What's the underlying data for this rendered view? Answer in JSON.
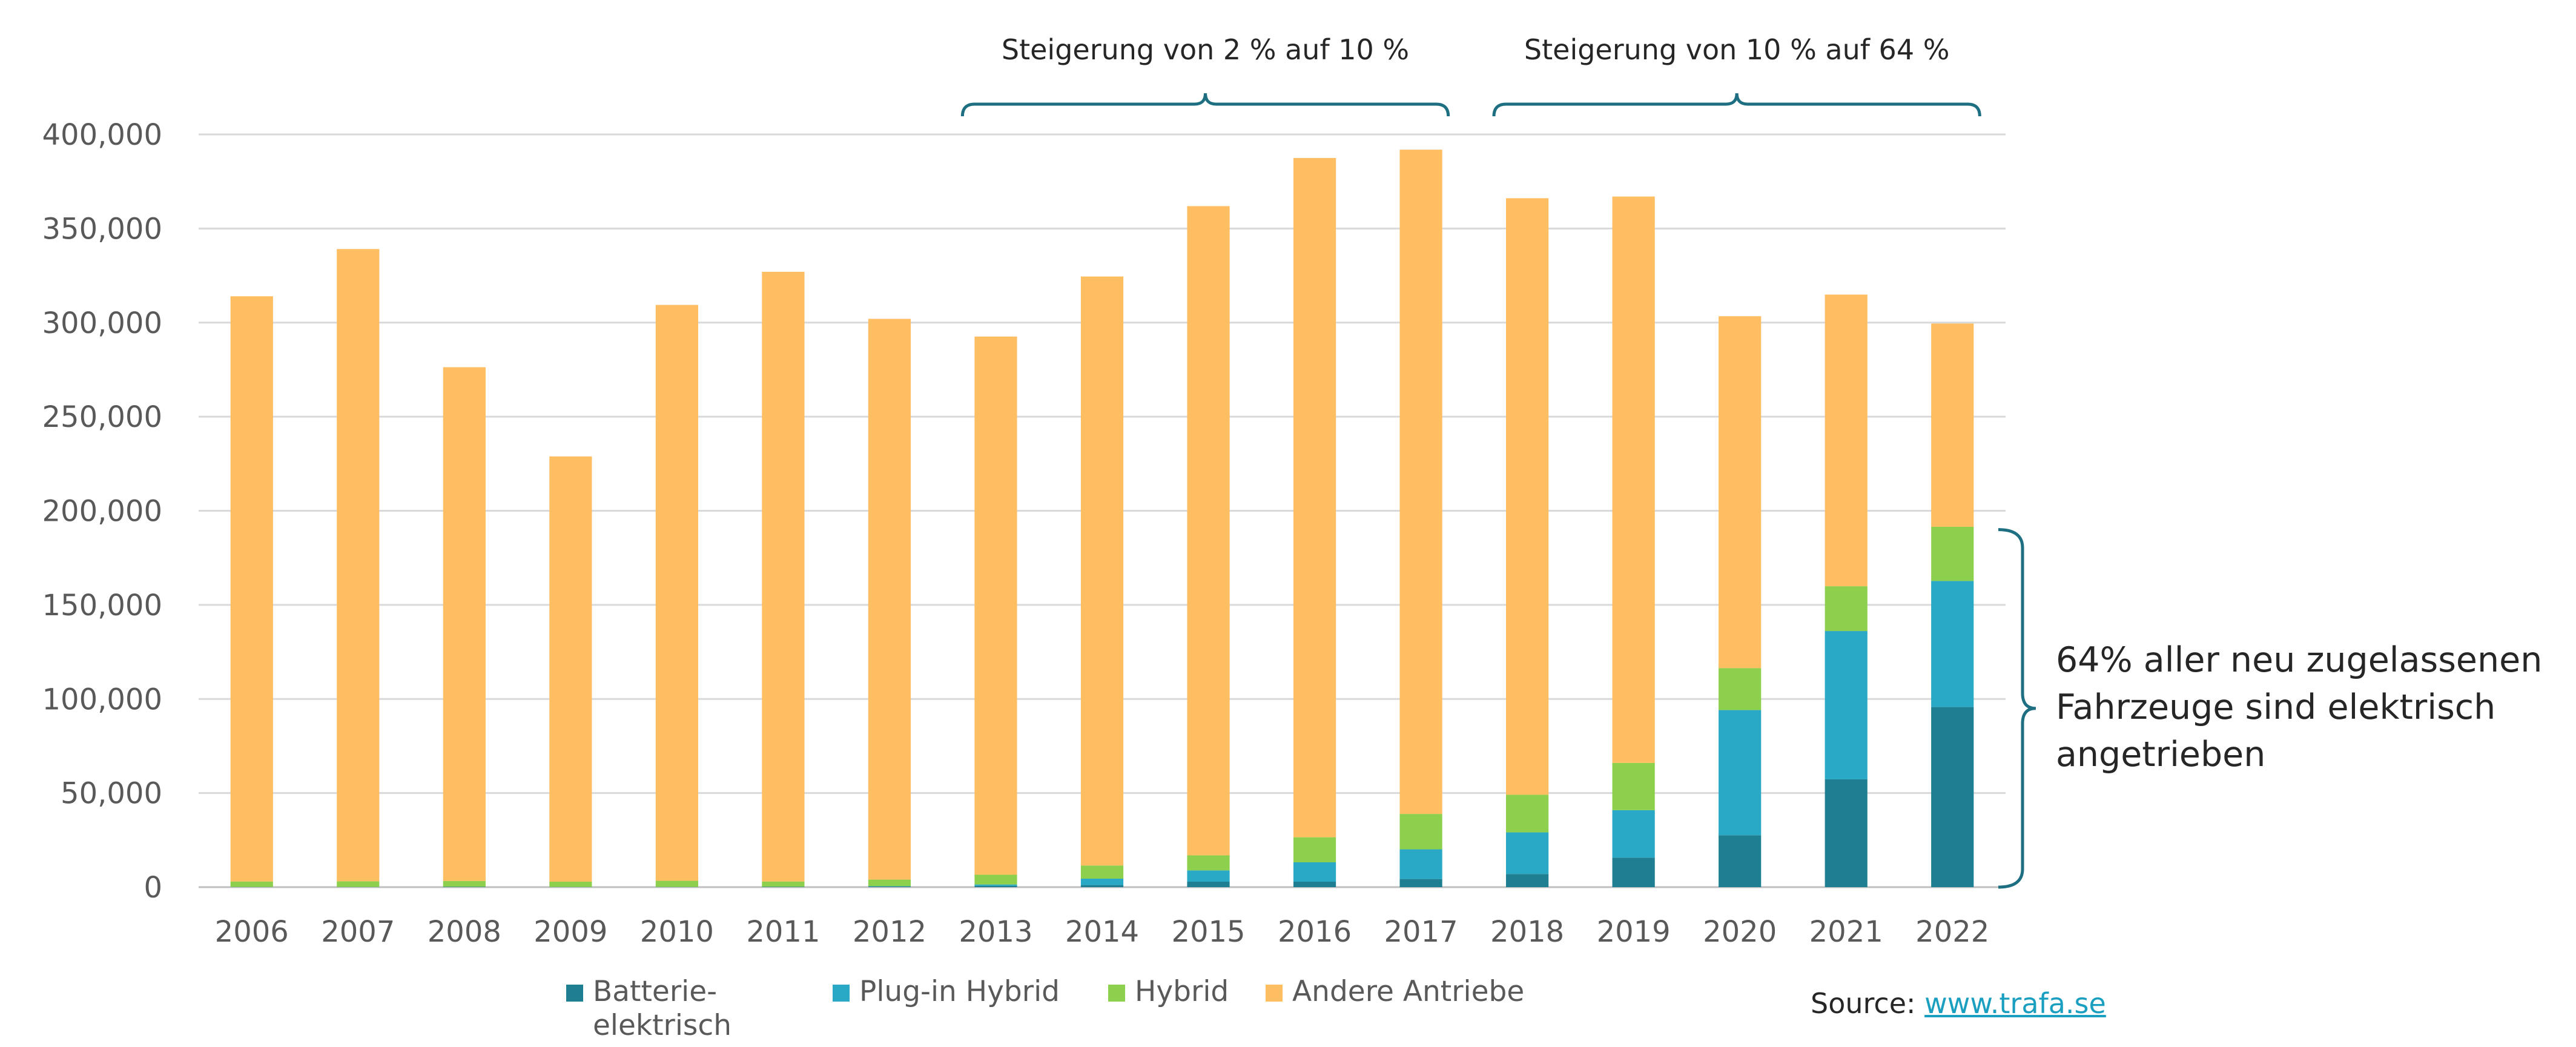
{
  "chart_data": {
    "type": "bar",
    "stacked": true,
    "categories": [
      "2006",
      "2007",
      "2008",
      "2009",
      "2010",
      "2011",
      "2012",
      "2013",
      "2014",
      "2015",
      "2016",
      "2017",
      "2018",
      "2019",
      "2020",
      "2021",
      "2022"
    ],
    "series": [
      {
        "name": "Batterie-elektrisch",
        "legend_lines": [
          "Batterie-",
          "elektrisch"
        ],
        "color": "#1e7f92",
        "values": [
          100,
          100,
          200,
          100,
          100,
          200,
          300,
          700,
          1100,
          2900,
          2900,
          4300,
          7000,
          15700,
          27600,
          57300,
          95700
        ]
      },
      {
        "name": "Plug-in Hybrid",
        "legend_lines": [
          "Plug-in Hybrid"
        ],
        "color": "#29a9c6",
        "values": [
          0,
          0,
          0,
          0,
          0,
          0,
          200,
          700,
          3400,
          6000,
          10300,
          15800,
          22100,
          25200,
          66500,
          78800,
          67000
        ]
      },
      {
        "name": "Hybrid",
        "legend_lines": [
          "Hybrid"
        ],
        "color": "#8dd04d",
        "values": [
          2900,
          3000,
          3100,
          2800,
          3300,
          2800,
          3500,
          5200,
          7000,
          8000,
          13300,
          18800,
          20000,
          25100,
          22300,
          23800,
          28800
        ]
      },
      {
        "name": "Andere Antriebe",
        "legend_lines": [
          "Andere Antriebe"
        ],
        "color": "#ffbe62",
        "values": [
          311000,
          336000,
          273000,
          226000,
          306000,
          324000,
          298000,
          286000,
          313000,
          345000,
          361000,
          353000,
          317000,
          301000,
          187000,
          155000,
          108000
        ]
      }
    ],
    "ylim": [
      0,
      400000
    ],
    "yticks": [
      "0",
      "50,000",
      "100,000",
      "150,000",
      "200,000",
      "250,000",
      "300,000",
      "350,000",
      "400,000"
    ],
    "title": "",
    "xlabel": "",
    "ylabel": "",
    "grid": true,
    "annotations": {
      "bracket_1": {
        "text": "Steigerung von 2 % auf 10 %",
        "from": "2013",
        "to": "2017"
      },
      "bracket_2": {
        "text": "Steigerung von 10 % auf 64 %",
        "from": "2018",
        "to": "2022"
      },
      "side_note": {
        "lines": [
          "64% aller neu zugelassenen",
          "Fahrzeuge sind elektrisch",
          "angetrieben"
        ],
        "range": [
          0,
          190000
        ]
      }
    }
  },
  "source": {
    "label": "Source: ",
    "link_text": "www.trafa.se"
  },
  "colors": {
    "grid": "#d9d9d9",
    "axis": "#bfbfbf",
    "bracket": "#1e6f82"
  }
}
